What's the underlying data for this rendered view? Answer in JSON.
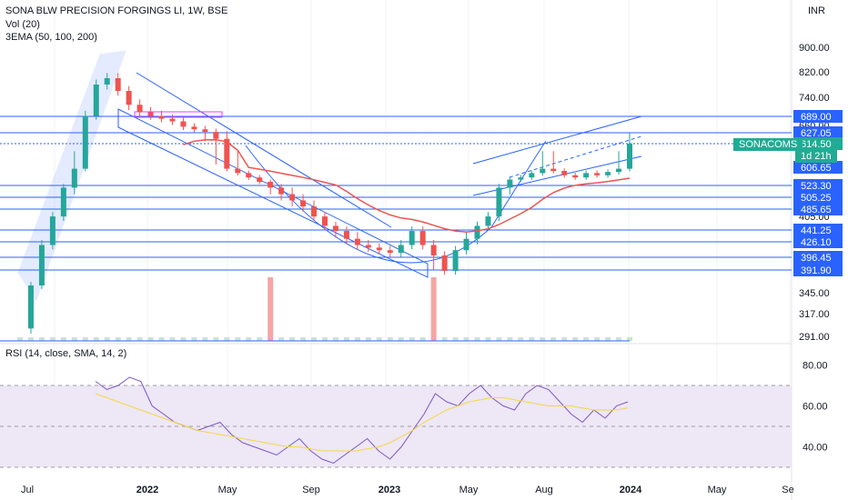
{
  "header": {
    "symbol_line": "SONA BLW PRECISION FORGINGS LI, 1W, BSE",
    "vol_line": "Vol (20)",
    "ema_line": "3EMA (50, 100, 200)",
    "currency": "INR"
  },
  "rsi_header": "RSI (14, close, SMA, 14, 2)",
  "current": {
    "ticker": "SONACOMS",
    "price": "614.50",
    "countdown": "1d 21h"
  },
  "colors": {
    "up": "#26a69a",
    "down": "#ef5350",
    "trendline": "#2962ff",
    "ema": "#ef5350",
    "ema_short": "#f5d742",
    "rsi": "#7e57c2",
    "rsi_band": "#ede7f6",
    "current_label": "#22ab94"
  },
  "chart_data": [
    {
      "type": "candlestick",
      "title": "SONA BLW PRECISION FORGINGS LI, 1W, BSE",
      "x_axis_labels": [
        "Jul",
        "2022",
        "May",
        "Sep",
        "2023",
        "May",
        "Aug",
        "2024",
        "May",
        "Se"
      ],
      "y_axis_labels": [
        "900.00",
        "820.00",
        "740.00",
        "660.00",
        "405.00",
        "345.00",
        "317.00",
        "291.00"
      ],
      "price_scale_tags": [
        "689.00",
        "627.05",
        "614.50",
        "606.65",
        "523.30",
        "505.25",
        "485.65",
        "441.25",
        "426.10",
        "396.45",
        "391.90"
      ],
      "horizontal_levels": [
        689.0,
        627.05,
        523.3,
        505.25,
        485.65,
        441.25,
        426.1,
        396.45,
        391.9
      ],
      "ohlc_weekly": {
        "start": "2021-06",
        "close_path": [
          300,
          360,
          420,
          470,
          520,
          600,
          690,
          780,
          800,
          760,
          720,
          700,
          690,
          680,
          670,
          650,
          640,
          630,
          620,
          600,
          580,
          560,
          540,
          520,
          510,
          500,
          490,
          470,
          450,
          440,
          430,
          420,
          415,
          410,
          405,
          420,
          440,
          420,
          400,
          390,
          410,
          430,
          450,
          470,
          520,
          550,
          560,
          580,
          600,
          590,
          570,
          560,
          580,
          570,
          585,
          600,
          614.5
        ]
      },
      "ema_series": [
        {
          "name": "3EMA (50, 100, 200)"
        }
      ],
      "volume_label": "Vol (20)"
    },
    {
      "type": "line",
      "title": "RSI (14, close, SMA, 14, 2)",
      "y_axis_labels": [
        "80.00",
        "60.00",
        "40.00"
      ],
      "band": [
        30,
        70
      ],
      "rsi_values": [
        72,
        68,
        70,
        74,
        72,
        60,
        56,
        52,
        50,
        48,
        50,
        52,
        46,
        42,
        40,
        38,
        36,
        40,
        44,
        38,
        34,
        32,
        36,
        40,
        44,
        38,
        34,
        40,
        48,
        56,
        66,
        62,
        60,
        66,
        70,
        64,
        60,
        58,
        66,
        70,
        68,
        62,
        56,
        52,
        58,
        54,
        60,
        62
      ],
      "sma_values": [
        66,
        64,
        62,
        60,
        58,
        56,
        54,
        52,
        50,
        48,
        47,
        46,
        45,
        44,
        43,
        42,
        41,
        40,
        40,
        39,
        38,
        38,
        38,
        38,
        39,
        40,
        42,
        45,
        48,
        52,
        55,
        58,
        60,
        62,
        63,
        64,
        64,
        63,
        62,
        61,
        60,
        60,
        60,
        59,
        58,
        58,
        58,
        59
      ]
    }
  ]
}
